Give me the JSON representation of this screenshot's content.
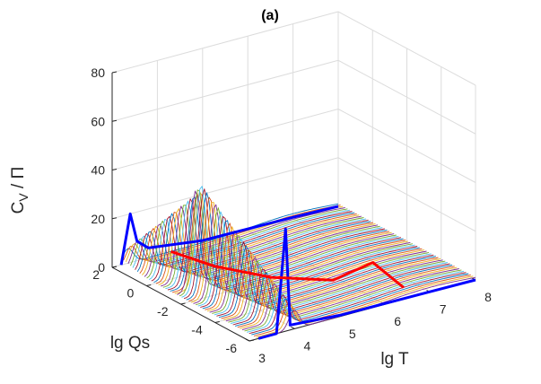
{
  "chart_data": {
    "type": "surface-3d-waterfall",
    "title": "(a)",
    "xlabel": "lg T",
    "ylabel": "lg Qs",
    "zlabel": "C_V / Π",
    "zlabel_main": "C",
    "zlabel_sub": "V",
    "zlabel_rest": " / Π",
    "xlim": [
      3,
      8
    ],
    "ylim": [
      -6,
      2
    ],
    "zlim": [
      0,
      80
    ],
    "xticks": [
      "3",
      "4",
      "5",
      "6",
      "7",
      "8"
    ],
    "yticks": [
      "2",
      "0",
      "-2",
      "-4",
      "-6"
    ],
    "zticks": [
      "0",
      "20",
      "40",
      "60",
      "80"
    ],
    "grid": true,
    "series": [
      {
        "color": "#0000ff",
        "points": [
          [
            3.2,
            2.0,
            0.0
          ],
          [
            3.4,
            2.0,
            20.0
          ],
          [
            3.55,
            2.0,
            8.0
          ],
          [
            3.8,
            2.0,
            4.0
          ],
          [
            5.0,
            2.0,
            1.0
          ],
          [
            7.0,
            2.0,
            0.5
          ],
          [
            8.0,
            2.0,
            0.0
          ]
        ]
      },
      {
        "color": "#0000ff",
        "points": [
          [
            3.2,
            -6.0,
            0.0
          ],
          [
            3.6,
            -6.0,
            0.0
          ],
          [
            3.8,
            -6.0,
            42.0
          ],
          [
            3.9,
            -6.0,
            2.0
          ],
          [
            5.0,
            -6.0,
            0.5
          ],
          [
            7.0,
            -6.0,
            0.2
          ],
          [
            8.0,
            -6.0,
            0.0
          ]
        ]
      },
      {
        "color": "#ff0000",
        "points": [
          [
            4.3,
            2.0,
            0.0
          ],
          [
            4.5,
            0.0,
            0.5
          ],
          [
            5.0,
            -2.0,
            1.0
          ],
          [
            5.8,
            -3.5,
            1.5
          ],
          [
            6.3,
            -4.5,
            10.0
          ],
          [
            6.6,
            -5.5,
            2.0
          ]
        ]
      }
    ],
    "colormap": [
      "#0072bd",
      "#d95319",
      "#edb120",
      "#7e2f8e",
      "#77ac30",
      "#4dbeee",
      "#a2142f"
    ]
  }
}
